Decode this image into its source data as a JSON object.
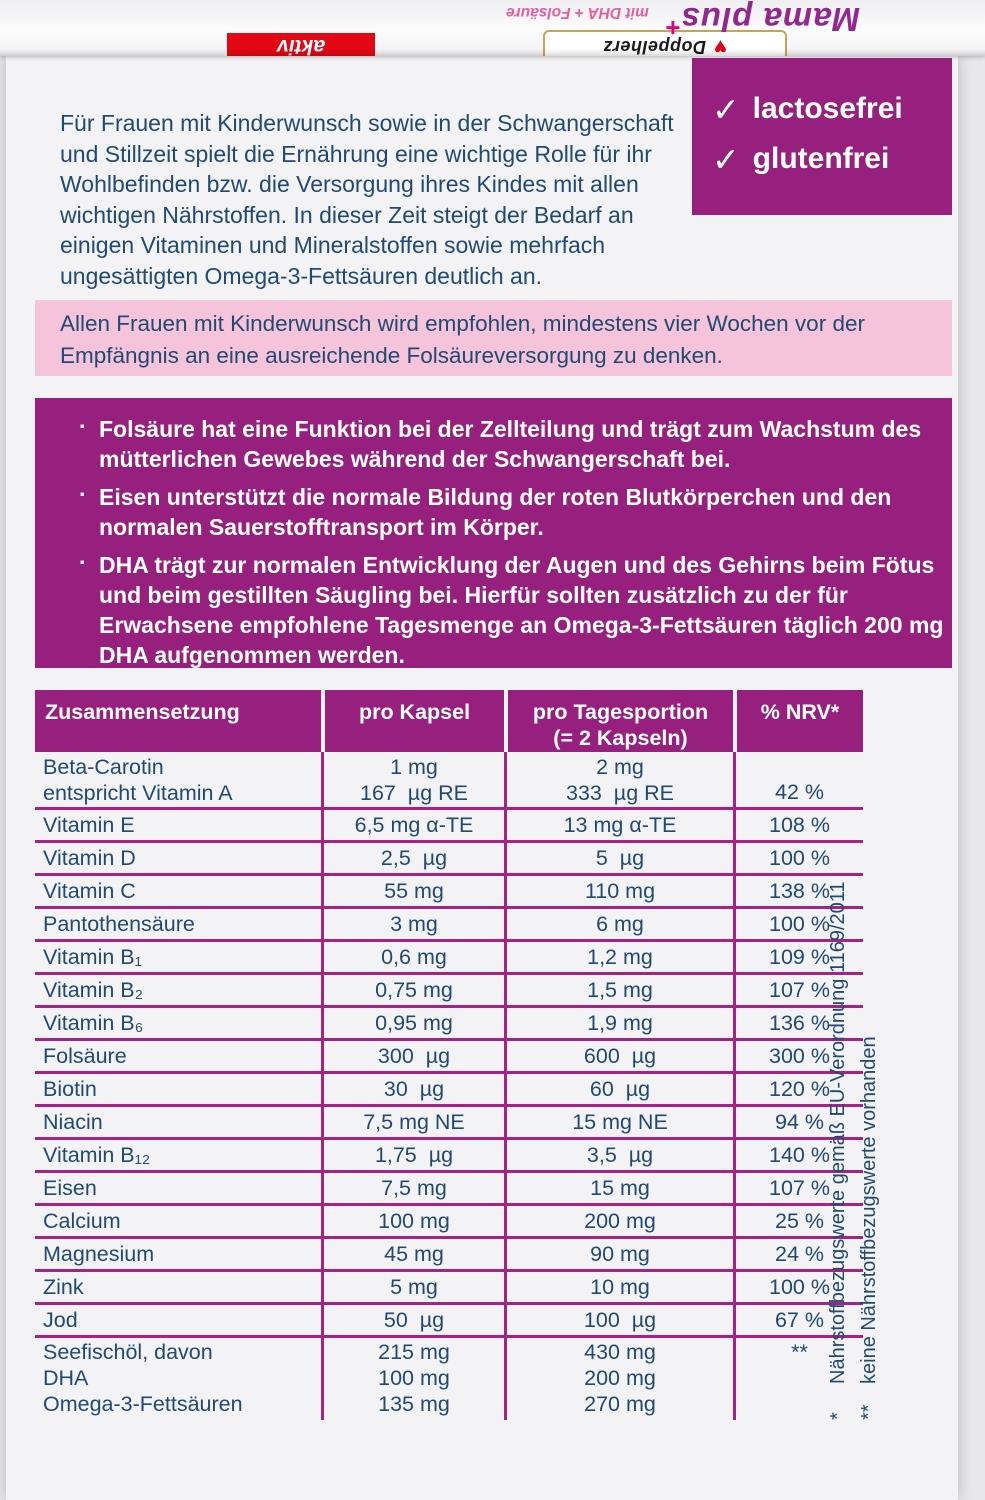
{
  "brand": {
    "title": "Mama plus",
    "title_plus": "+",
    "subtitle": "mit DHA + Folsäure",
    "badge": "aktiv",
    "logo_text": "Doppelherz",
    "heart_icon": "♥"
  },
  "intro": {
    "text": "Für Frauen mit Kinderwunsch sowie in der Schwangerschaft\nund Stillzeit spielt die Ernährung eine wichtige Rolle für ihr\nWohlbefinden bzw. die Versorgung ihres Kindes mit allen\nwichtigen Nährstoffen. In dieser Zeit steigt der Bedarf an\neinigen Vitaminen und Mineralstoffen sowie mehrfach\nungesättigten Omega-3-Fettsäuren deutlich an."
  },
  "claims": {
    "check_icon": "✓",
    "items": [
      "lactosefrei",
      "glutenfrei"
    ]
  },
  "advice_box": {
    "text": "Allen Frauen mit Kinderwunsch wird empfohlen, mindestens vier Wochen vor der\nEmpfängnis an eine ausreichende Folsäureversorgung zu denken."
  },
  "benefits_box": {
    "bullet_char": "·",
    "bullets": [
      "Folsäure hat eine Funktion bei der Zellteilung und trägt zum Wachstum des\nmütterlichen Gewebes während der Schwangerschaft bei.",
      "Eisen unterstützt die normale Bildung der roten Blutkörperchen und den\nnormalen Sauerstofftransport im Körper.",
      "DHA trägt zur normalen Entwicklung der Augen und des Gehirns beim Fötus\nund beim gestillten Säugling bei. Hierfür sollten zusätzlich zu der für\nErwachsene empfohlene Tagesmenge an Omega-3-Fettsäuren täglich 200 mg\nDHA aufgenommen werden."
    ]
  },
  "table": {
    "headers": {
      "col1": "Zusammensetzung",
      "col2": "pro Kapsel",
      "col3": "pro Tagesportion\n(= 2 Kapseln)",
      "col4": "% NRV*"
    },
    "rows": [
      {
        "name": "Beta-Carotin\nentspricht Vitamin A",
        "per_capsule": "1 mg\n167  µg RE",
        "per_day": "2 mg\n333  µg RE",
        "nrv": "42 %"
      },
      {
        "name": "Vitamin E",
        "per_capsule": "6,5 mg α-TE",
        "per_day": "13 mg α-TE",
        "nrv": "108 %"
      },
      {
        "name": "Vitamin D",
        "per_capsule": "2,5  µg",
        "per_day": "5  µg",
        "nrv": "100 %"
      },
      {
        "name": "Vitamin C",
        "per_capsule": "55 mg",
        "per_day": "110 mg",
        "nrv": "138 %"
      },
      {
        "name": "Pantothensäure",
        "per_capsule": "3 mg",
        "per_day": "6 mg",
        "nrv": "100 %"
      },
      {
        "name": "Vitamin B₁",
        "per_capsule": "0,6 mg",
        "per_day": "1,2 mg",
        "nrv": "109 %"
      },
      {
        "name": "Vitamin B₂",
        "per_capsule": "0,75 mg",
        "per_day": "1,5 mg",
        "nrv": "107 %"
      },
      {
        "name": "Vitamin B₆",
        "per_capsule": "0,95 mg",
        "per_day": "1,9 mg",
        "nrv": "136 %"
      },
      {
        "name": "Folsäure",
        "per_capsule": "300  µg",
        "per_day": "600  µg",
        "nrv": "300 %"
      },
      {
        "name": "Biotin",
        "per_capsule": "30  µg",
        "per_day": "60  µg",
        "nrv": "120 %"
      },
      {
        "name": "Niacin",
        "per_capsule": "7,5 mg NE",
        "per_day": "15 mg NE",
        "nrv": "94 %"
      },
      {
        "name": "Vitamin B₁₂",
        "per_capsule": "1,75  µg",
        "per_day": "3,5  µg",
        "nrv": "140 %"
      },
      {
        "name": "Eisen",
        "per_capsule": "7,5 mg",
        "per_day": "15 mg",
        "nrv": "107 %"
      },
      {
        "name": "Calcium",
        "per_capsule": "100 mg",
        "per_day": "200 mg",
        "nrv": "25 %"
      },
      {
        "name": "Magnesium",
        "per_capsule": "45 mg",
        "per_day": "90 mg",
        "nrv": "24 %"
      },
      {
        "name": "Zink",
        "per_capsule": "5 mg",
        "per_day": "10 mg",
        "nrv": "100 %"
      },
      {
        "name": "Jod",
        "per_capsule": "50  µg",
        "per_day": "100  µg",
        "nrv": "67 %"
      },
      {
        "name": "Seefischöl, davon\nDHA\nOmega-3-Fettsäuren",
        "per_capsule": "215 mg\n100 mg\n135 mg",
        "per_day": "430 mg\n200 mg\n270 mg",
        "nrv": "**"
      }
    ]
  },
  "footnotes": {
    "items": [
      {
        "marker": "*",
        "text": "Nährstoffbezugswerte gemäß EU-Verordnung 1169/2011"
      },
      {
        "marker": "**",
        "text": "keine Nährstoffbezugswerte vorhanden"
      }
    ]
  },
  "colors": {
    "accent-purple": "#97207e",
    "pink-box": "#f6c4da",
    "navy": "#214a72",
    "line": "#a52384",
    "brand-purple": "#92278f",
    "brand-pink": "#e6007e",
    "subtitle-pink": "#e55fa0",
    "aktiv-red": "#e30613",
    "gold": "#c7a355"
  }
}
